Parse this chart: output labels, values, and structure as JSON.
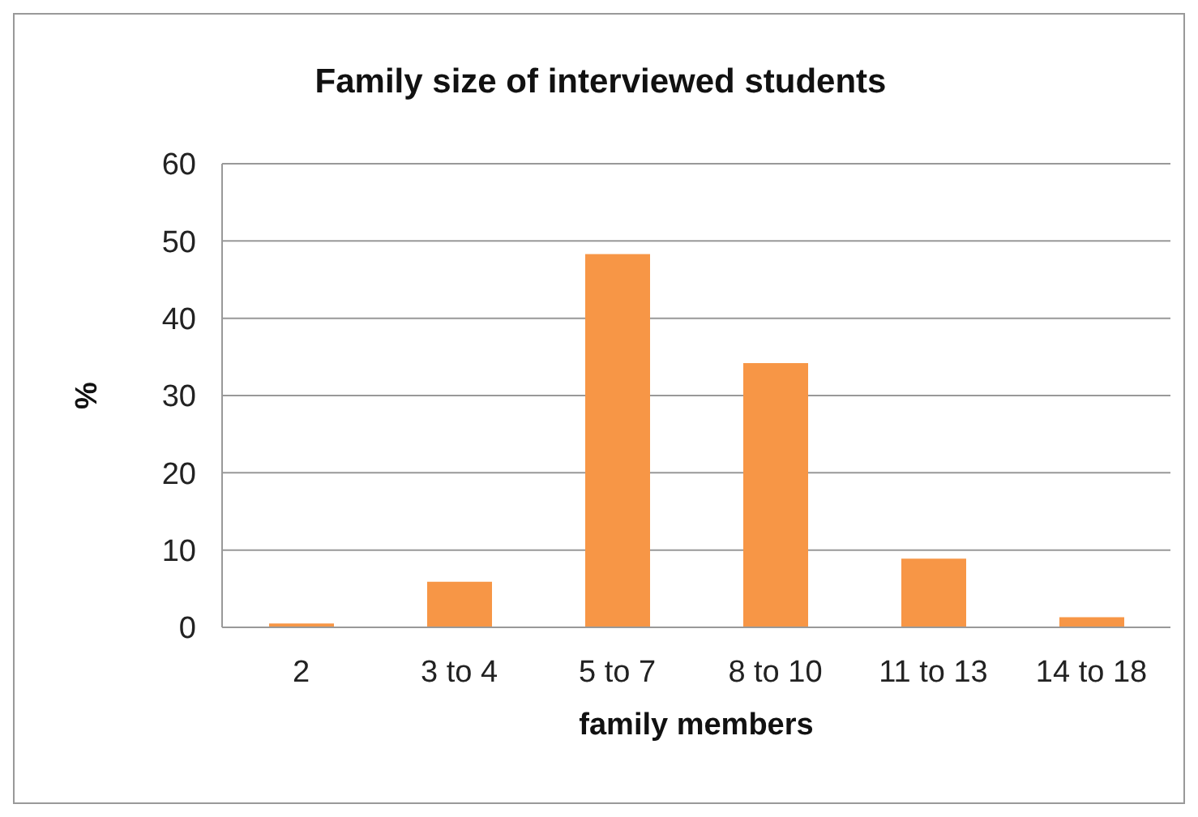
{
  "chart_data": {
    "type": "bar",
    "title": "Family size of interviewed students",
    "xlabel": "family members",
    "ylabel": "%",
    "categories": [
      "2",
      "3 to 4",
      "5 to 7",
      "8 to 10",
      "11 to 13",
      "14 to 18"
    ],
    "values": [
      0.5,
      5.9,
      48.3,
      34.2,
      8.9,
      1.3
    ],
    "color": "#f79646",
    "ylim": [
      0,
      60
    ],
    "yticks": [
      0,
      10,
      20,
      30,
      40,
      50,
      60
    ],
    "grid": "y",
    "legend": false
  }
}
